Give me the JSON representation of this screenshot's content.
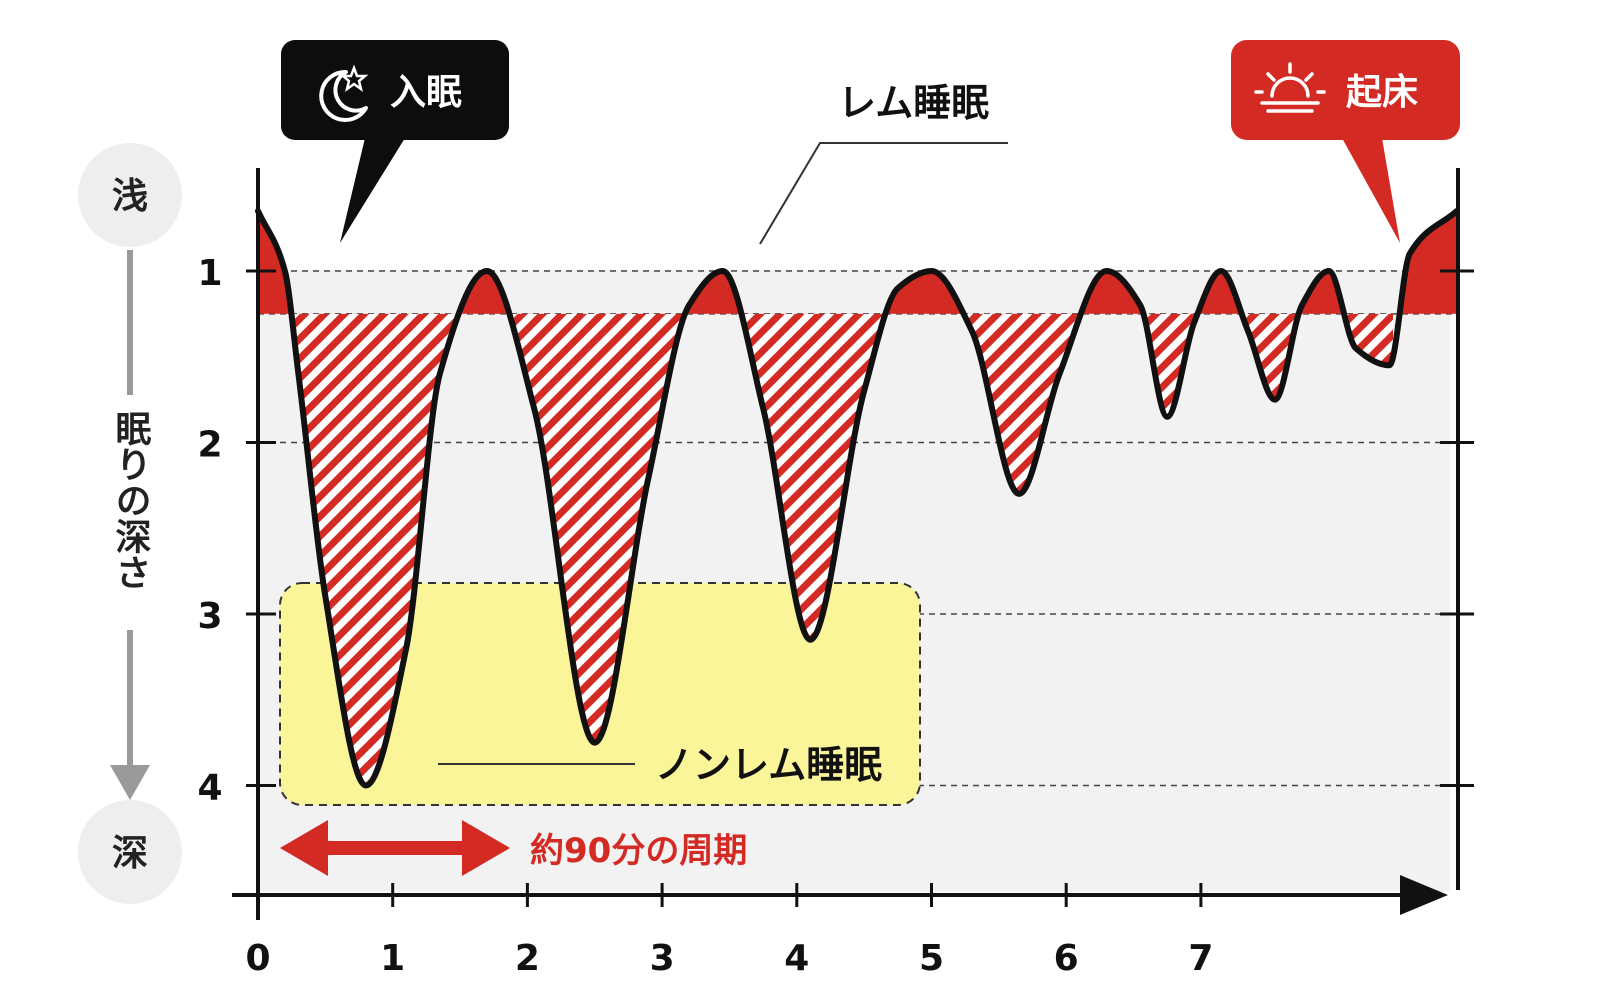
{
  "chart_data": {
    "type": "line",
    "title": "",
    "xlabel": "",
    "ylabel": "眠りの深さ",
    "y_top_label": "浅",
    "y_bottom_label": "深",
    "x_ticks": [
      "0",
      "1",
      "2",
      "3",
      "4",
      "5",
      "6",
      "7"
    ],
    "y_ticks": [
      "1",
      "2",
      "3",
      "4"
    ],
    "xlim": [
      0,
      8.9
    ],
    "ylim": [
      0.6,
      4.6
    ],
    "rem_threshold": 1.25,
    "grid": "dashed horizontal at each depth level",
    "series": [
      {
        "name": "",
        "x": [
          0.0,
          0.2,
          0.3,
          0.5,
          0.8,
          1.1,
          1.35,
          1.7,
          2.05,
          2.5,
          2.9,
          3.2,
          3.45,
          3.75,
          4.1,
          4.5,
          4.75,
          5.0,
          5.3,
          5.65,
          5.95,
          6.3,
          6.55,
          6.75,
          6.95,
          7.15,
          7.35,
          7.55,
          7.75,
          7.95,
          8.15,
          8.4,
          8.55,
          8.9
        ],
        "y": [
          0.65,
          1.0,
          1.6,
          2.9,
          4.0,
          3.2,
          1.6,
          1.0,
          1.8,
          3.75,
          2.2,
          1.2,
          1.0,
          1.8,
          3.15,
          1.7,
          1.1,
          1.0,
          1.35,
          2.3,
          1.6,
          1.0,
          1.2,
          1.85,
          1.3,
          1.0,
          1.35,
          1.75,
          1.2,
          1.0,
          1.45,
          1.55,
          0.9,
          0.65
        ]
      }
    ]
  },
  "annotations": {
    "sleep_onset": "入眠",
    "wake_up": "起床",
    "rem_label": "レム睡眠",
    "nonrem_label": "ノンレム睡眠",
    "cycle_label": "約90分の周期"
  },
  "colors": {
    "accent_red": "#d42a24",
    "line": "#111111",
    "plot_bg": "#f2f2f2",
    "nonrem_box": "#fbf59a",
    "onset_bubble": "#0d0d0d",
    "circle_bg": "#eeeeee"
  },
  "icons": {
    "sleep_onset": "moon-star-icon",
    "wake_up": "sunrise-icon"
  }
}
